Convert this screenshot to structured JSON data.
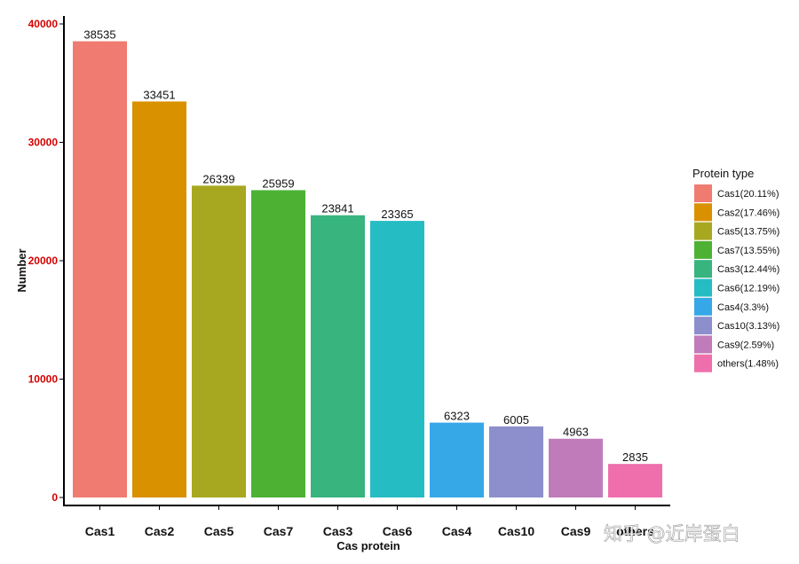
{
  "chart_data": {
    "type": "bar",
    "xlabel": "Cas protein",
    "ylabel": "Number",
    "ylim": [
      0,
      40000
    ],
    "yticks": [
      0,
      10000,
      20000,
      30000,
      40000
    ],
    "grid": false,
    "legend_position": "right",
    "legend_title": "Protein type",
    "categories": [
      "Cas1",
      "Cas2",
      "Cas5",
      "Cas7",
      "Cas3",
      "Cas6",
      "Cas4",
      "Cas10",
      "Cas9",
      "others"
    ],
    "values": [
      38535,
      33451,
      26339,
      25959,
      23841,
      23365,
      6323,
      6005,
      4963,
      2835
    ],
    "colors": [
      "#F07B70",
      "#D99100",
      "#A8A820",
      "#4DB234",
      "#38B47E",
      "#26BCC4",
      "#36A8E8",
      "#8C8FCC",
      "#C07BBA",
      "#EE6FAC"
    ],
    "legend_labels": [
      "Cas1(20.11%)",
      "Cas2(17.46%)",
      "Cas5(13.75%)",
      "Cas7(13.55%)",
      "Cas3(12.44%)",
      "Cas6(12.19%)",
      "Cas4(3.3%)",
      "Cas10(3.13%)",
      "Cas9(2.59%)",
      "others(1.48%)"
    ]
  },
  "watermark": "知乎 @近岸蛋白"
}
